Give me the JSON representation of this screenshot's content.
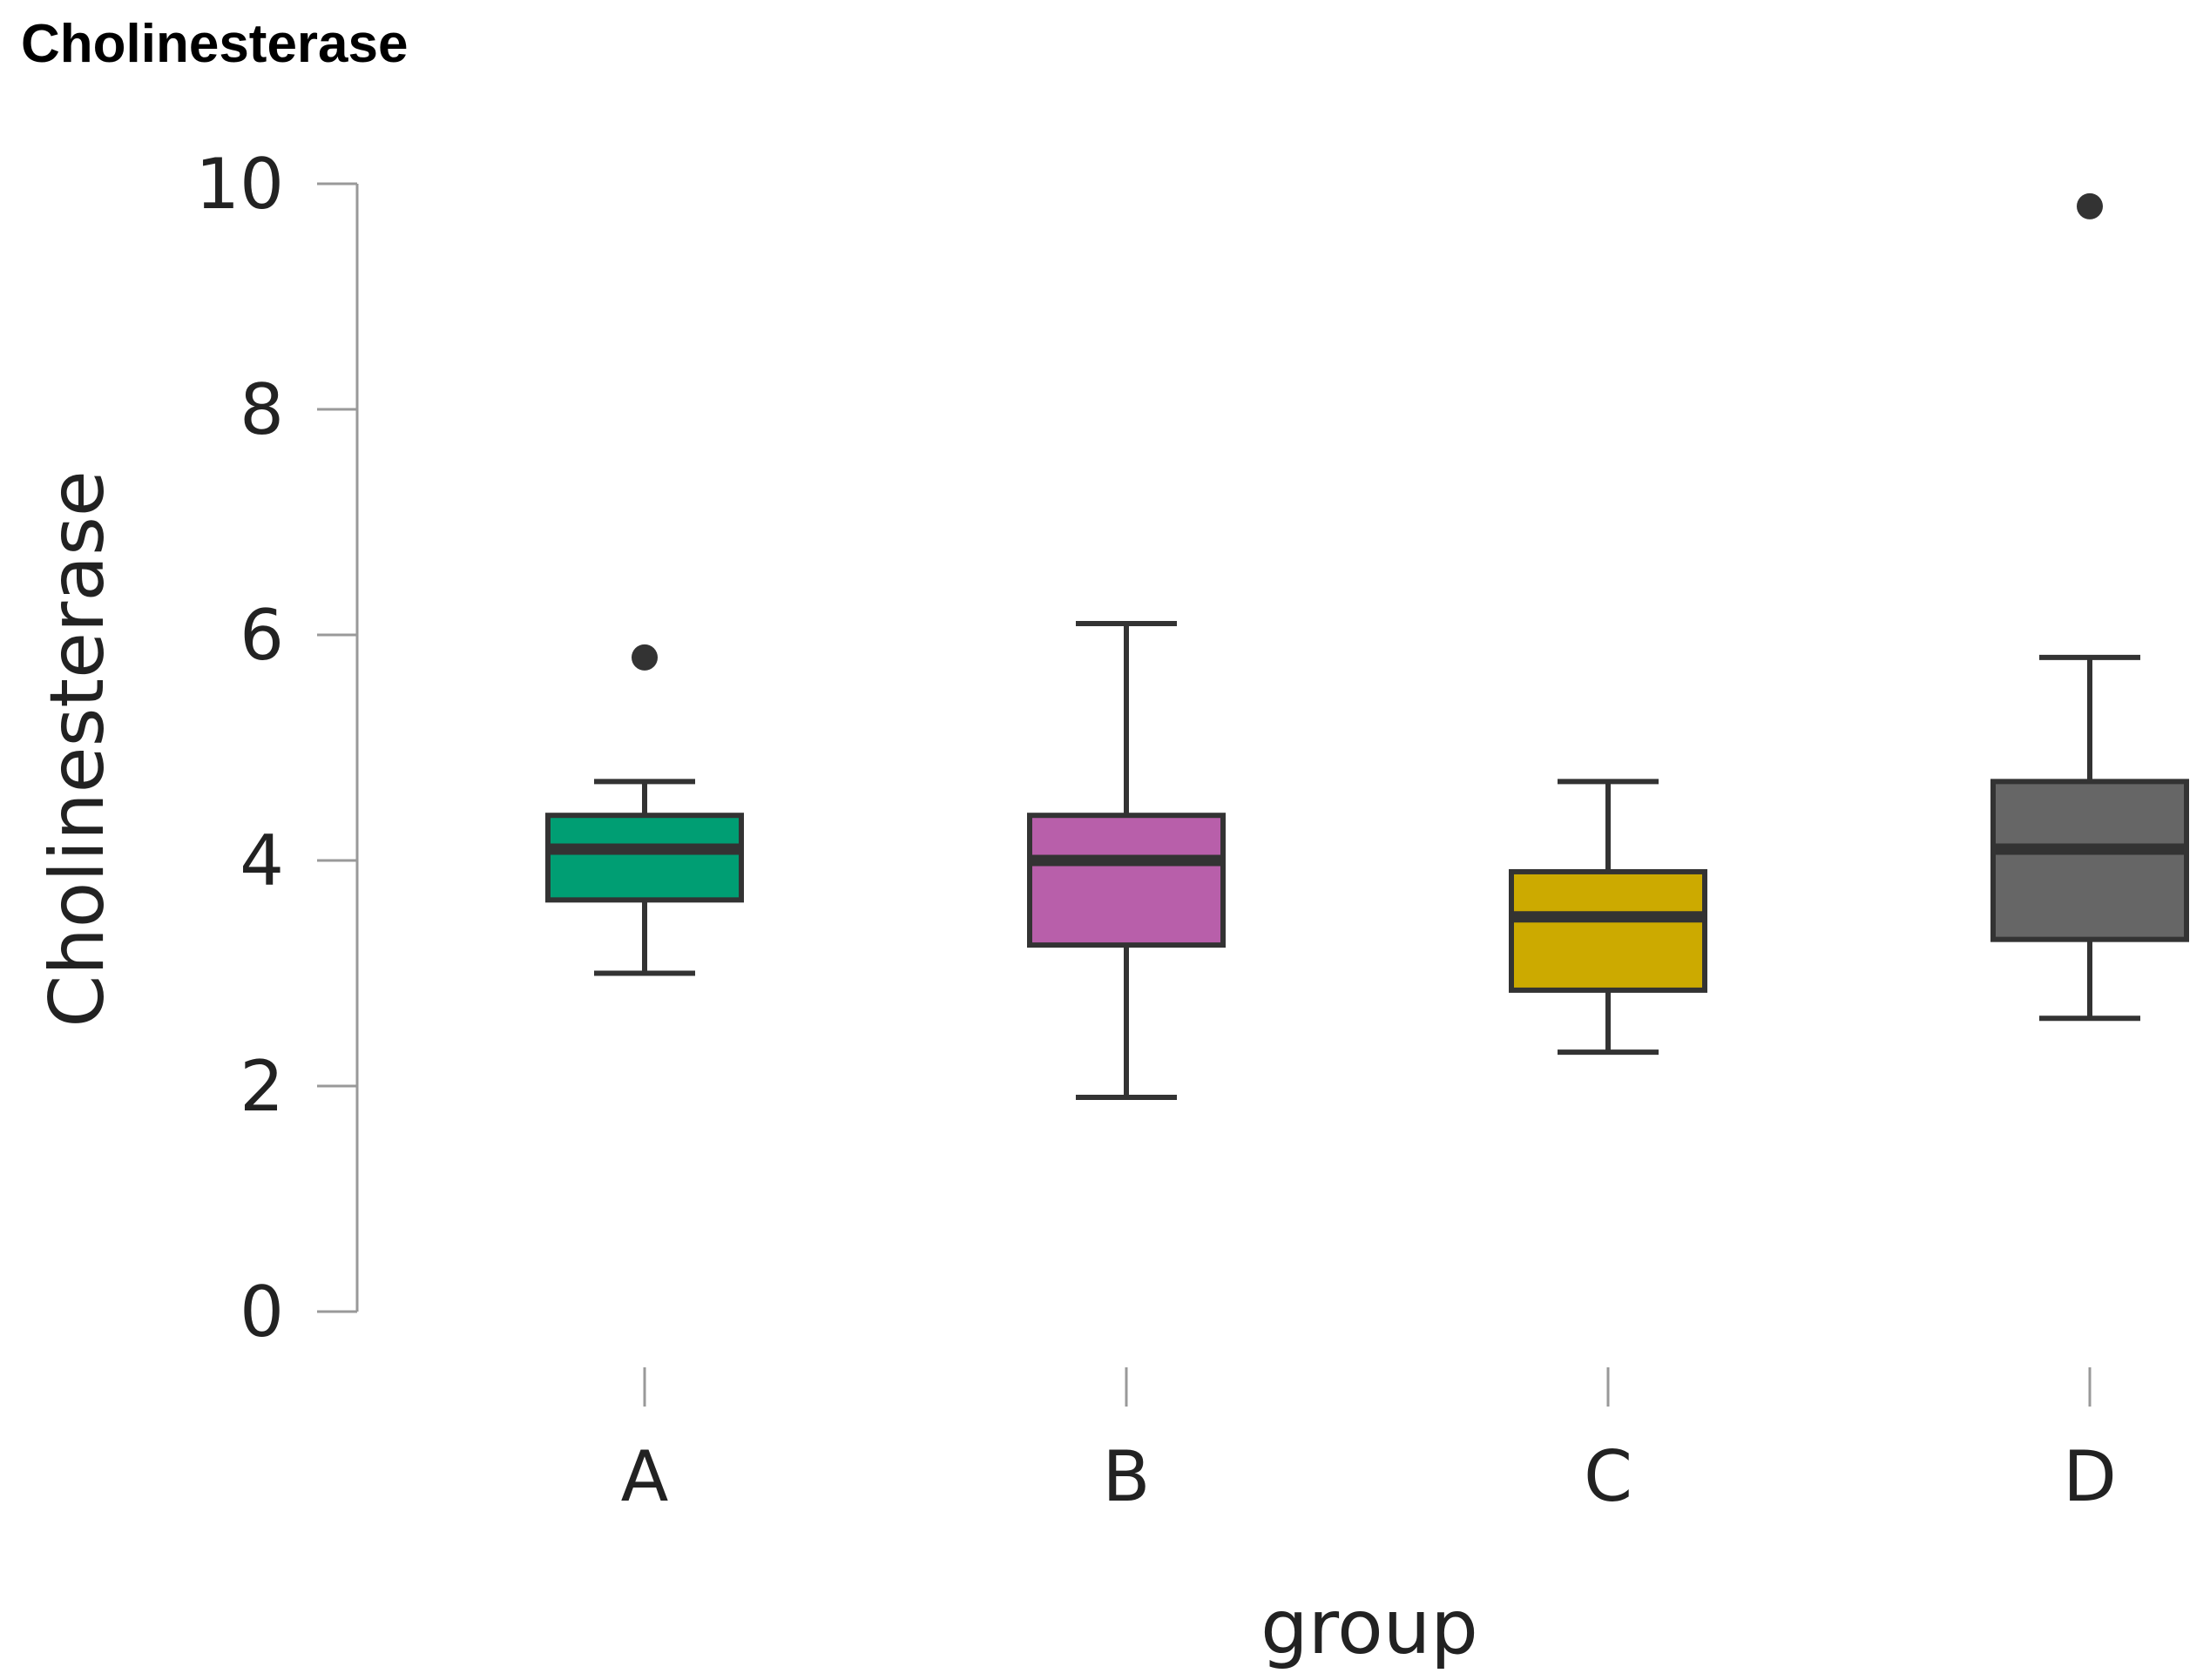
{
  "page_title": "Cholinesterase",
  "chart_data": {
    "type": "box",
    "title": "",
    "xlabel": "group",
    "ylabel": "Cholinesterase",
    "ylim": [
      0,
      10
    ],
    "yticks": [
      0,
      2,
      4,
      6,
      8,
      10
    ],
    "grid": false,
    "categories": [
      "A",
      "B",
      "C",
      "D"
    ],
    "boxes": [
      {
        "category": "A",
        "whisker_low": 3.0,
        "q1": 3.65,
        "median": 4.1,
        "q3": 4.4,
        "whisker_high": 4.7,
        "outliers": [
          5.8
        ],
        "color": "#009E73"
      },
      {
        "category": "B",
        "whisker_low": 1.9,
        "q1": 3.25,
        "median": 4.0,
        "q3": 4.4,
        "whisker_high": 6.1,
        "outliers": [],
        "color": "#B85FAA"
      },
      {
        "category": "C",
        "whisker_low": 2.3,
        "q1": 2.85,
        "median": 3.5,
        "q3": 3.9,
        "whisker_high": 4.7,
        "outliers": [],
        "color": "#CCAA00"
      },
      {
        "category": "D",
        "whisker_low": 2.6,
        "q1": 3.3,
        "median": 4.1,
        "q3": 4.7,
        "whisker_high": 5.8,
        "outliers": [
          9.8
        ],
        "color": "#666666"
      }
    ],
    "colors": {
      "outline": "#333333",
      "axis": "#999999",
      "text": "#222222"
    }
  }
}
